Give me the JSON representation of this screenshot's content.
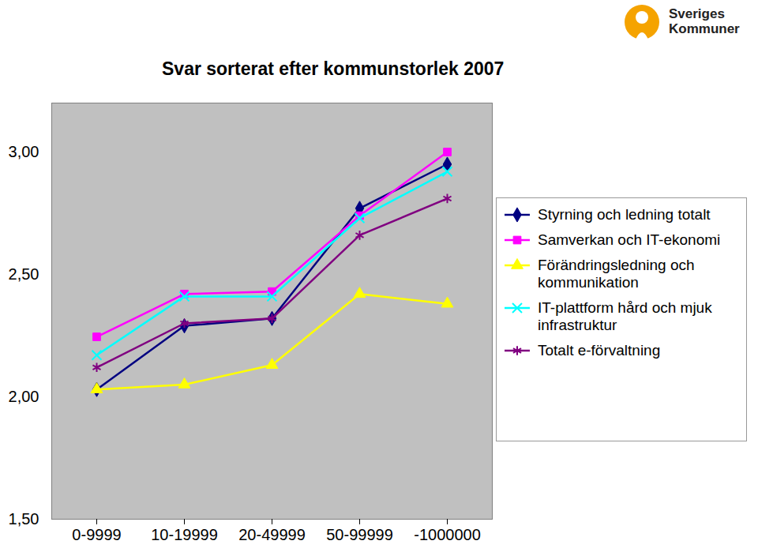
{
  "chart_data": {
    "type": "line",
    "title": "Svar sorterat efter kommunstorlek 2007",
    "annotations": [
      "Sveriges",
      "Kommuner"
    ],
    "categories": [
      "0-9999",
      "10-19999",
      "20-49999",
      "50-99999",
      "-1000000"
    ],
    "series": [
      {
        "name": "Styrning och ledning totalt",
        "color": "#000080",
        "marker": "diamond",
        "values": [
          2.03,
          2.29,
          2.32,
          2.77,
          2.95
        ]
      },
      {
        "name": "Samverkan och IT-ekonomi",
        "color": "#ff00ff",
        "marker": "square",
        "values": [
          2.245,
          2.42,
          2.43,
          2.74,
          3.0
        ]
      },
      {
        "name": "Förändringsledning och kommunikation",
        "color": "#ffff00",
        "marker": "triangle",
        "values": [
          2.03,
          2.05,
          2.13,
          2.42,
          2.38
        ]
      },
      {
        "name": "IT-plattform hård och mjuk infrastruktur",
        "color": "#00ffff",
        "marker": "times",
        "values": [
          2.17,
          2.41,
          2.41,
          2.73,
          2.92
        ]
      },
      {
        "name": "Totalt e-förvaltning",
        "color": "#800080",
        "marker": "asterisk",
        "values": [
          2.12,
          2.3,
          2.32,
          2.66,
          2.81
        ]
      }
    ],
    "ylim": [
      1.5,
      3.2
    ],
    "yticks": [
      {
        "value": 1.5,
        "label": "1,50"
      },
      {
        "value": 2.0,
        "label": "2,00"
      },
      {
        "value": 2.5,
        "label": "2,50"
      },
      {
        "value": 3.0,
        "label": "3,00"
      }
    ],
    "grid": false,
    "legend": "right"
  }
}
